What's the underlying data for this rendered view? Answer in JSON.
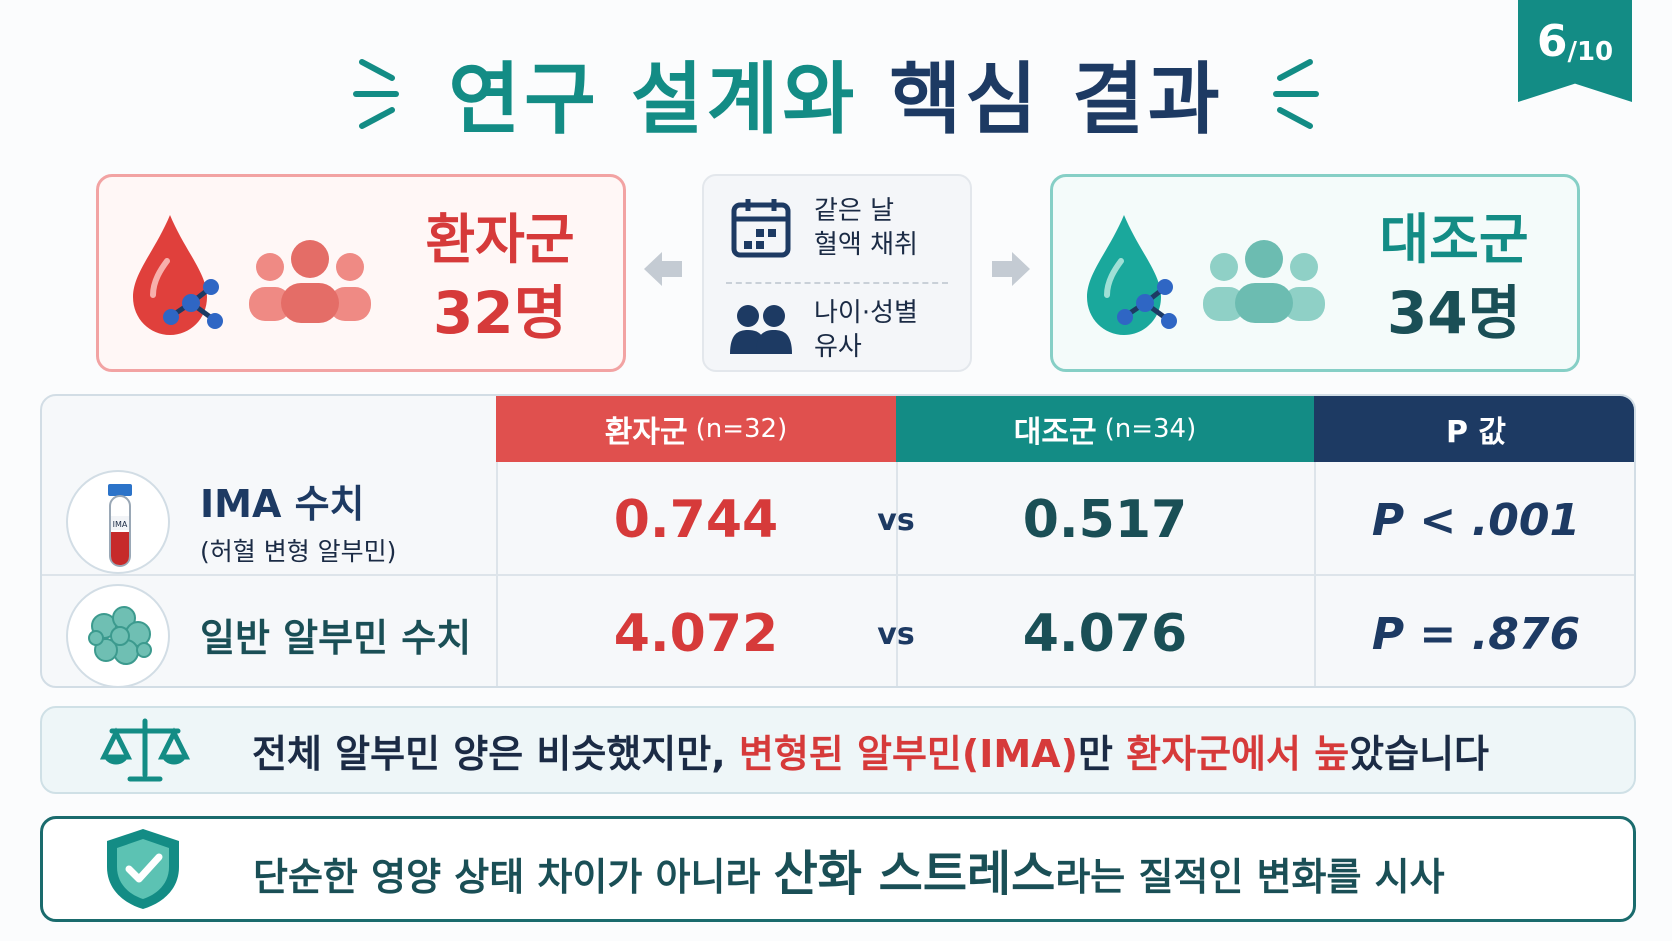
{
  "page_badge": {
    "current": "6",
    "total": "/10"
  },
  "title": {
    "part1": "연구 설계와 ",
    "part2": "핵심 결과"
  },
  "patient_group": {
    "name": "환자군",
    "count": "32명",
    "color": "#d63a3a"
  },
  "control_group": {
    "name": "대조군",
    "count": "34명",
    "color": "#138c85"
  },
  "design": {
    "same_day_line1": "같은 날",
    "same_day_line2": "혈액 채취",
    "matched_line1": "나이·성별",
    "matched_line2": "유사"
  },
  "table": {
    "headers": {
      "patient": "환자군",
      "patient_n": "(n=32)",
      "control": "대조군",
      "control_n": "(n=34)",
      "p_value": "P 값"
    },
    "rows": [
      {
        "label": "IMA 수치",
        "sublabel": "(허혈 변형 알부민)",
        "icon": "blood-tube-icon",
        "tube_text": "IMA",
        "patient": "0.744",
        "vs": "vs",
        "control": "0.517",
        "p": "P < .001"
      },
      {
        "label": "일반 알부민 수치",
        "icon": "protein-molecule-icon",
        "patient": "4.072",
        "vs": "vs",
        "control": "4.076",
        "p": "P = .876"
      }
    ]
  },
  "note1": {
    "icon": "scale-icon",
    "text_a": "전체 알부민 양은 비슷했지만, ",
    "text_b": "변형된 알부민(IMA)",
    "text_c": "만 ",
    "text_d": "환자군에서 높",
    "text_e": "았습니다"
  },
  "note2": {
    "icon": "shield-check-icon",
    "text_a": "단순한 영양 상태 차이가 아니라 ",
    "text_b": "산화 스트레스",
    "text_c": "라는 질적인 변화를 시사"
  },
  "colors": {
    "teal": "#138c85",
    "navy": "#1d3a63",
    "red": "#d63a3a"
  }
}
